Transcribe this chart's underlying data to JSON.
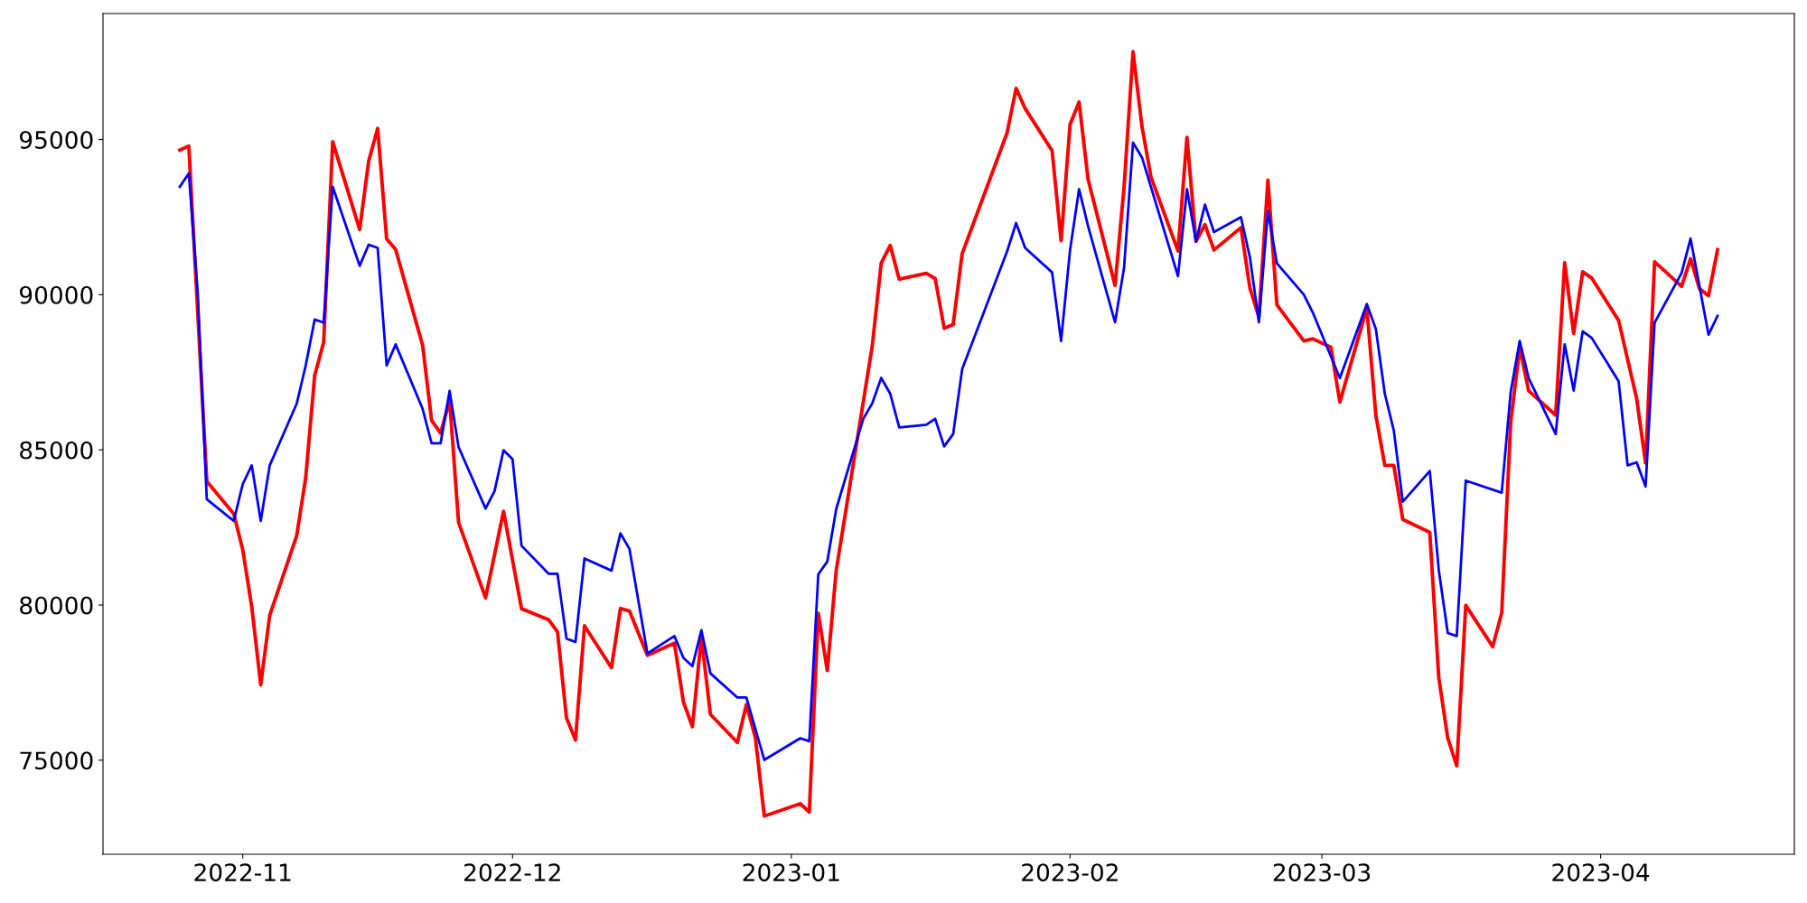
{
  "chart_data": {
    "type": "line",
    "xlim": [
      "2022-10-16T11:00",
      "2023-04-22T13:00"
    ],
    "ylim": [
      71970,
      99060
    ],
    "xticks": [
      "2022-11",
      "2022-12",
      "2023-01",
      "2023-02",
      "2023-03",
      "2023-04"
    ],
    "yticks": [
      75000,
      80000,
      85000,
      90000,
      95000
    ],
    "grid": false,
    "legend": false,
    "marker": "none",
    "line_style": "solid",
    "series": [
      {
        "color": "#ff0000",
        "x": [
          "2022-10-25",
          "2022-10-26",
          "2022-10-28",
          "2022-10-31",
          "2022-11-01",
          "2022-11-02",
          "2022-11-03",
          "2022-11-04",
          "2022-11-07",
          "2022-11-08",
          "2022-11-09",
          "2022-11-10",
          "2022-11-11",
          "2022-11-14",
          "2022-11-15",
          "2022-11-16",
          "2022-11-17",
          "2022-11-18",
          "2022-11-21",
          "2022-11-22",
          "2022-11-23",
          "2022-11-24",
          "2022-11-25",
          "2022-11-28",
          "2022-11-30",
          "2022-12-02",
          "2022-12-05",
          "2022-12-06",
          "2022-12-07",
          "2022-12-08",
          "2022-12-09",
          "2022-12-12",
          "2022-12-13",
          "2022-12-14",
          "2022-12-16",
          "2022-12-19",
          "2022-12-20",
          "2022-12-21",
          "2022-12-22",
          "2022-12-23",
          "2022-12-26",
          "2022-12-27",
          "2022-12-28",
          "2022-12-29",
          "2023-01-02",
          "2023-01-03",
          "2023-01-04",
          "2023-01-05",
          "2023-01-06",
          "2023-01-10",
          "2023-01-11",
          "2023-01-12",
          "2023-01-13",
          "2023-01-16",
          "2023-01-17",
          "2023-01-18",
          "2023-01-19",
          "2023-01-20",
          "2023-01-25",
          "2023-01-26",
          "2023-01-27",
          "2023-01-30",
          "2023-01-31",
          "2023-02-01",
          "2023-02-02",
          "2023-02-03",
          "2023-02-06",
          "2023-02-07",
          "2023-02-08",
          "2023-02-09",
          "2023-02-10",
          "2023-02-13",
          "2023-02-14",
          "2023-02-15",
          "2023-02-16",
          "2023-02-17",
          "2023-02-20",
          "2023-02-21",
          "2023-02-22",
          "2023-02-23",
          "2023-02-24",
          "2023-02-27",
          "2023-02-28",
          "2023-03-02",
          "2023-03-03",
          "2023-03-06",
          "2023-03-07",
          "2023-03-08",
          "2023-03-09",
          "2023-03-10",
          "2023-03-13",
          "2023-03-14",
          "2023-03-15",
          "2023-03-16",
          "2023-03-17",
          "2023-03-20",
          "2023-03-21",
          "2023-03-22",
          "2023-03-23",
          "2023-03-24",
          "2023-03-27",
          "2023-03-28",
          "2023-03-29",
          "2023-03-30",
          "2023-03-31",
          "2023-04-03",
          "2023-04-05",
          "2023-04-06",
          "2023-04-07",
          "2023-04-10",
          "2023-04-11",
          "2023-04-12",
          "2023-04-13",
          "2023-04-14"
        ],
        "values": [
          94660,
          94790,
          83990,
          82940,
          81780,
          79940,
          77430,
          79670,
          82240,
          84100,
          87400,
          88470,
          94930,
          92100,
          94300,
          95360,
          91800,
          91460,
          88370,
          85950,
          85540,
          86600,
          82660,
          80230,
          83020,
          79880,
          79530,
          79140,
          76360,
          75650,
          79330,
          77980,
          79890,
          79810,
          78380,
          78770,
          76880,
          76080,
          78960,
          76480,
          75570,
          76790,
          75730,
          73200,
          73600,
          73330,
          79730,
          77890,
          81130,
          88340,
          91020,
          91590,
          90500,
          90690,
          90520,
          88920,
          89040,
          91320,
          95220,
          96650,
          96000,
          94640,
          91740,
          95490,
          96210,
          93720,
          90300,
          93450,
          97830,
          95410,
          93790,
          91410,
          95070,
          91720,
          92260,
          91440,
          92160,
          90210,
          89280,
          93690,
          89670,
          88510,
          88580,
          88310,
          86540,
          89570,
          86120,
          84500,
          84500,
          82760,
          82340,
          77660,
          75710,
          74820,
          79990,
          78660,
          79750,
          85890,
          88300,
          86900,
          86120,
          91030,
          88750,
          90740,
          90540,
          89170,
          86660,
          84580,
          91060,
          90270,
          91160,
          90190,
          89970,
          91450
        ]
      },
      {
        "color": "#0000ff",
        "x": [
          "2022-10-25",
          "2022-10-26",
          "2022-10-27",
          "2022-10-28",
          "2022-10-31",
          "2022-11-01",
          "2022-11-02",
          "2022-11-03",
          "2022-11-04",
          "2022-11-07",
          "2022-11-08",
          "2022-11-09",
          "2022-11-10",
          "2022-11-11",
          "2022-11-14",
          "2022-11-15",
          "2022-11-16",
          "2022-11-17",
          "2022-11-18",
          "2022-11-21",
          "2022-11-22",
          "2022-11-23",
          "2022-11-24",
          "2022-11-25",
          "2022-11-28",
          "2022-11-29",
          "2022-11-30",
          "2022-12-01",
          "2022-12-02",
          "2022-12-05",
          "2022-12-06",
          "2022-12-07",
          "2022-12-08",
          "2022-12-09",
          "2022-12-12",
          "2022-12-13",
          "2022-12-14",
          "2022-12-16",
          "2022-12-19",
          "2022-12-20",
          "2022-12-21",
          "2022-12-22",
          "2022-12-23",
          "2022-12-26",
          "2022-12-27",
          "2022-12-29",
          "2023-01-02",
          "2023-01-03",
          "2023-01-04",
          "2023-01-05",
          "2023-01-06",
          "2023-01-09",
          "2023-01-10",
          "2023-01-11",
          "2023-01-12",
          "2023-01-13",
          "2023-01-16",
          "2023-01-17",
          "2023-01-18",
          "2023-01-19",
          "2023-01-20",
          "2023-01-25",
          "2023-01-26",
          "2023-01-27",
          "2023-01-30",
          "2023-01-31",
          "2023-02-01",
          "2023-02-02",
          "2023-02-03",
          "2023-02-06",
          "2023-02-07",
          "2023-02-08",
          "2023-02-09",
          "2023-02-13",
          "2023-02-14",
          "2023-02-15",
          "2023-02-16",
          "2023-02-17",
          "2023-02-20",
          "2023-02-21",
          "2023-02-22",
          "2023-02-23",
          "2023-02-24",
          "2023-02-27",
          "2023-02-28",
          "2023-03-03",
          "2023-03-06",
          "2023-03-07",
          "2023-03-08",
          "2023-03-09",
          "2023-03-10",
          "2023-03-13",
          "2023-03-14",
          "2023-03-15",
          "2023-03-16",
          "2023-03-17",
          "2023-03-21",
          "2023-03-22",
          "2023-03-23",
          "2023-03-24",
          "2023-03-27",
          "2023-03-28",
          "2023-03-29",
          "2023-03-30",
          "2023-03-31",
          "2023-04-03",
          "2023-04-04",
          "2023-04-05",
          "2023-04-06",
          "2023-04-07",
          "2023-04-10",
          "2023-04-11",
          "2023-04-13",
          "2023-04-14"
        ],
        "values": [
          93480,
          93910,
          90040,
          83410,
          82710,
          83900,
          84500,
          82710,
          84500,
          86490,
          87720,
          89200,
          89100,
          93480,
          90930,
          91610,
          91510,
          87720,
          88400,
          86320,
          85210,
          85210,
          86900,
          85090,
          83110,
          83670,
          84990,
          84700,
          81910,
          81010,
          81010,
          78920,
          78810,
          81500,
          81110,
          82310,
          81810,
          78440,
          79000,
          78300,
          78030,
          79190,
          77800,
          77020,
          77020,
          75010,
          75710,
          75610,
          80990,
          81400,
          83100,
          86000,
          86500,
          87320,
          86810,
          85720,
          85810,
          86000,
          85110,
          85510,
          87600,
          91400,
          92310,
          91510,
          90720,
          88510,
          91440,
          93400,
          92210,
          89110,
          90860,
          94900,
          94420,
          90600,
          93400,
          91720,
          92900,
          92020,
          92500,
          91200,
          89110,
          92700,
          91010,
          90000,
          89420,
          87310,
          89700,
          88900,
          86810,
          85620,
          83330,
          84320,
          81130,
          79100,
          79000,
          84010,
          83620,
          86870,
          88510,
          87310,
          85510,
          88400,
          86910,
          88820,
          88610,
          87210,
          84500,
          84600,
          83820,
          89100,
          90700,
          91810,
          88710,
          89320
        ]
      }
    ]
  }
}
